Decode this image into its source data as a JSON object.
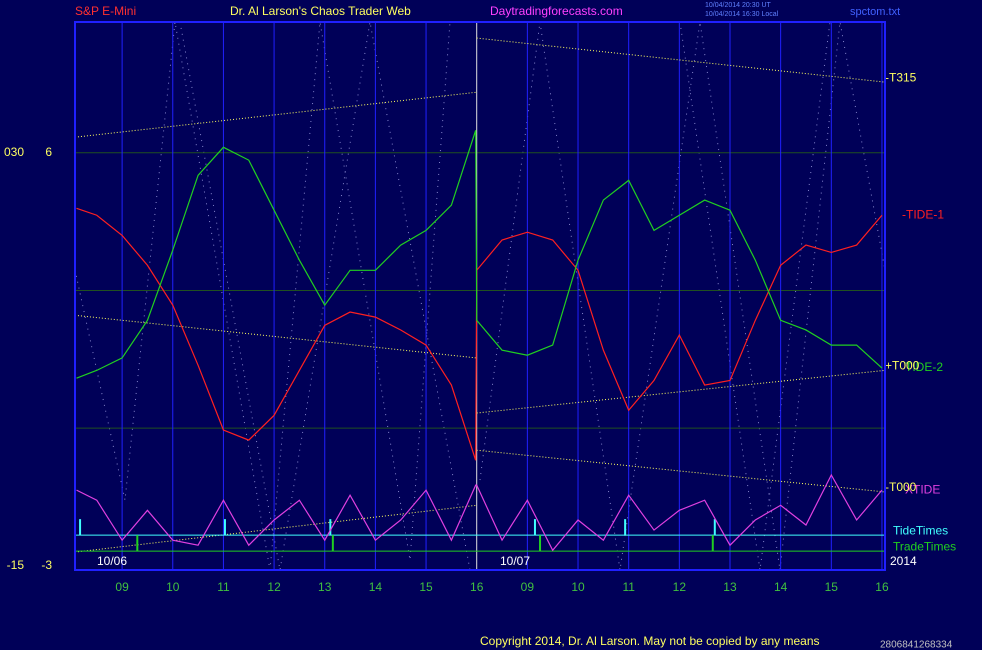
{
  "chart_data": {
    "type": "line",
    "title": "Dr. Al Larson's Chaos Trader Web",
    "instrument": "S&P E-Mini",
    "website": "Daytradingforecasts.com",
    "timestamps": [
      "10/04/2014 20:30 UT",
      "10/04/2014 16:30 Local"
    ],
    "file": "spctom.txt",
    "copyright": "Copyright 2014, Dr. Al Larson. May not be copied by any means",
    "serial": "2806841268334",
    "annotations": [
      "10/06",
      "10/07",
      "2014"
    ],
    "x": [
      0.1,
      0.5,
      1,
      1.5,
      2,
      2.5,
      3,
      3.5,
      4,
      4.5,
      5,
      5.5,
      6,
      6.5,
      7,
      7.5,
      7.98,
      8.0,
      8.5,
      9,
      9.5,
      10,
      10.5,
      11,
      11.5,
      12,
      12.5,
      13,
      13.5,
      14,
      14.5,
      15,
      15.5,
      16
    ],
    "xlim": [
      0.07,
      16.06
    ],
    "xticks": [
      {
        "value": 1,
        "label": "09"
      },
      {
        "value": 2,
        "label": "10"
      },
      {
        "value": 3,
        "label": "11"
      },
      {
        "value": 4,
        "label": "12"
      },
      {
        "value": 5,
        "label": "13"
      },
      {
        "value": 6,
        "label": "14"
      },
      {
        "value": 7,
        "label": "15"
      },
      {
        "value": 8,
        "label": "16"
      },
      {
        "value": 9,
        "label": "09"
      },
      {
        "value": 10,
        "label": "10"
      },
      {
        "value": 11,
        "label": "11"
      },
      {
        "value": 12,
        "label": "12"
      },
      {
        "value": 13,
        "label": "13"
      },
      {
        "value": 14,
        "label": "14"
      },
      {
        "value": 15,
        "label": "15"
      },
      {
        "value": 16,
        "label": "16"
      }
    ],
    "ylim": [
      -3.09,
      8.85
    ],
    "yticks": [
      6,
      -3
    ],
    "ygrid": [
      6,
      3,
      0
    ],
    "y2lim": [
      -15.44,
      44.27
    ],
    "y2ticks": [
      {
        "value": 30,
        "label": "030"
      },
      -15
    ],
    "series": [
      {
        "name": "-TIDE-1",
        "color": "#ff2020",
        "values": [
          4.79,
          4.64,
          4.2,
          3.55,
          2.68,
          1.37,
          -0.04,
          -0.26,
          0.28,
          1.26,
          2.24,
          2.53,
          2.42,
          2.14,
          1.81,
          0.94,
          -0.7,
          3.44,
          4.1,
          4.27,
          4.1,
          3.44,
          1.7,
          0.39,
          1.04,
          2.03,
          0.94,
          1.04,
          2.35,
          3.55,
          3.99,
          3.83,
          3.99,
          4.64
        ]
      },
      {
        "name": "TIDE-2",
        "color": "#20d020",
        "values": [
          1.09,
          1.26,
          1.53,
          2.35,
          3.88,
          5.51,
          6.12,
          5.84,
          4.75,
          3.66,
          2.68,
          3.44,
          3.44,
          3.99,
          4.31,
          4.86,
          6.49,
          2.35,
          1.7,
          1.59,
          1.81,
          3.66,
          4.97,
          5.4,
          4.31,
          4.64,
          4.97,
          4.75,
          3.66,
          2.35,
          2.14,
          1.81,
          1.81,
          1.31
        ]
      },
      {
        "name": "XTIDE",
        "color": "#e040e0",
        "values": [
          -1.35,
          -1.57,
          -2.44,
          -1.79,
          -2.44,
          -2.55,
          -1.57,
          -2.55,
          -2.0,
          -1.57,
          -2.44,
          -1.46,
          -2.44,
          -2.0,
          -1.35,
          -2.44,
          -1.24,
          -1.24,
          -2.44,
          -1.57,
          -2.66,
          -2.0,
          -2.44,
          -1.46,
          -2.22,
          -1.79,
          -1.57,
          -2.55,
          -2.0,
          -1.68,
          -2.11,
          -1.02,
          -2.0,
          -1.35
        ]
      }
    ],
    "trend_lines": [
      {
        "x": [
          0.07,
          8
        ],
        "values": [
          6.34,
          7.32
        ]
      },
      {
        "name": "-T315",
        "x": [
          8,
          16.06
        ],
        "values": [
          8.5,
          7.54
        ]
      },
      {
        "x": [
          0.07,
          8
        ],
        "values": [
          2.46,
          1.53
        ]
      },
      {
        "name": "+T000",
        "x": [
          8,
          16.06
        ],
        "values": [
          0.33,
          1.26
        ]
      },
      {
        "name": "-T000",
        "x": [
          8,
          16.06
        ],
        "values": [
          -0.48,
          -1.39
        ]
      },
      {
        "x": [
          0.07,
          8
        ],
        "values": [
          -2.7,
          -1.68
        ]
      }
    ],
    "trend_color": "#ffff60",
    "events": [
      {
        "name": "TideTimes",
        "color": "#40ffff",
        "level": -2.33,
        "times": [
          0.17,
          3.03,
          5.11,
          9.15,
          10.93,
          12.7
        ]
      },
      {
        "name": "TradeTimes",
        "color": "#20d020",
        "level": -2.68,
        "times": [
          1.3,
          5.16,
          9.25,
          12.66
        ]
      }
    ]
  }
}
